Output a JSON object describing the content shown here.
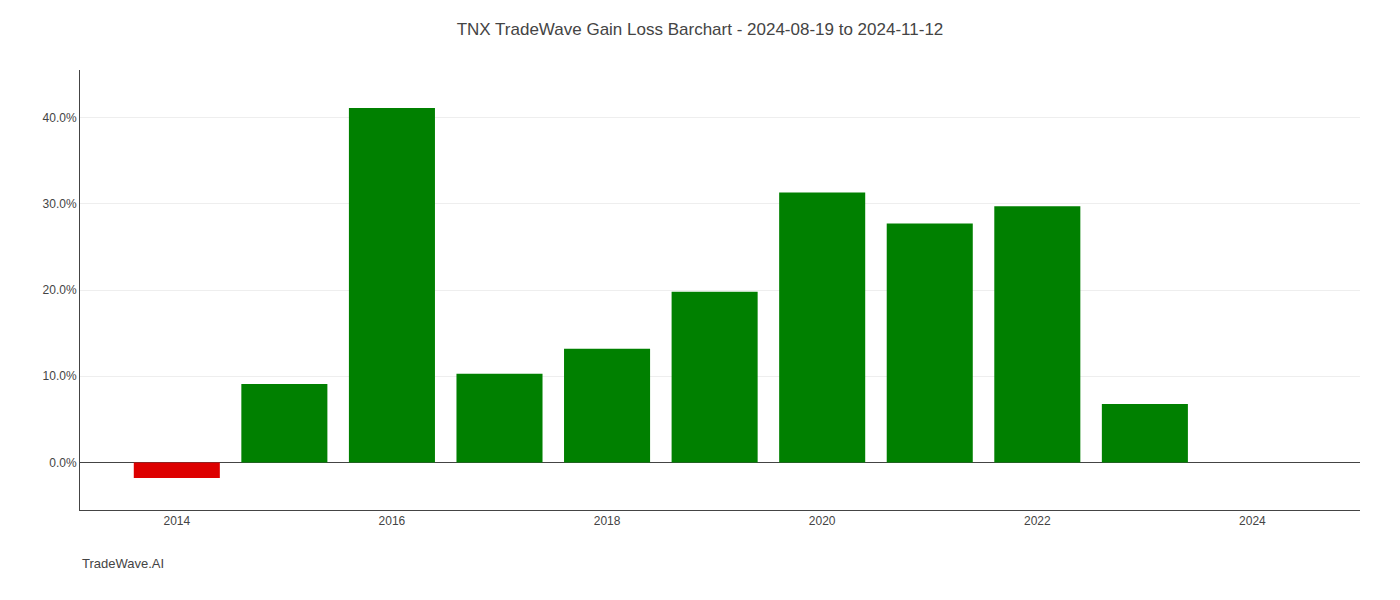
{
  "chart_data": {
    "type": "bar",
    "title": "TNX TradeWave Gain Loss Barchart - 2024-08-19 to 2024-11-12",
    "annotations": [
      {
        "text": "TradeWave.AI"
      }
    ],
    "x": [
      2014,
      2015,
      2016,
      2017,
      2018,
      2019,
      2020,
      2021,
      2022,
      2023
    ],
    "values": [
      -0.018,
      0.091,
      0.411,
      0.103,
      0.132,
      0.198,
      0.313,
      0.277,
      0.297,
      0.068
    ],
    "colors": [
      "#dd0000",
      "#008000",
      "#008000",
      "#008000",
      "#008000",
      "#008000",
      "#008000",
      "#008000",
      "#008000",
      "#008000"
    ],
    "xlim": [
      2013.1,
      2025.0
    ],
    "xticks": [
      2014,
      2016,
      2018,
      2020,
      2022,
      2024
    ],
    "ylim": [
      -0.055,
      0.455
    ],
    "yticks": [
      {
        "value": 0.0,
        "label": "0.0%"
      },
      {
        "value": 0.1,
        "label": "10.0%"
      },
      {
        "value": 0.2,
        "label": "20.0%"
      },
      {
        "value": 0.3,
        "label": "30.0%"
      },
      {
        "value": 0.4,
        "label": "40.0%"
      }
    ],
    "grid": true
  }
}
